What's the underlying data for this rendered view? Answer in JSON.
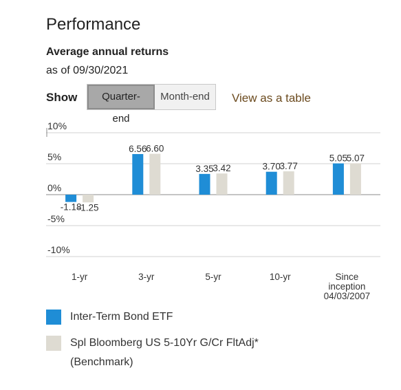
{
  "header": {
    "title": "Performance",
    "subtitle": "Average annual returns",
    "as_of": "as of 09/30/2021"
  },
  "controls": {
    "show_label": "Show",
    "options": [
      "Quarter-end",
      "Month-end"
    ],
    "selected": "Quarter-end",
    "table_link": "View as a table"
  },
  "colors": {
    "fund": "#1f8dd6",
    "benchmark": "#dedbd2",
    "link": "#6b4a1e",
    "grid": "#d0d0d0",
    "zero_line": "#8a8a8a"
  },
  "chart_data": {
    "type": "bar",
    "categories": [
      "1-yr",
      "3-yr",
      "5-yr",
      "10-yr",
      "Since inception 04/03/2007"
    ],
    "series": [
      {
        "name": "Inter-Term Bond ETF",
        "values": [
          -1.18,
          6.56,
          3.35,
          3.7,
          5.05
        ],
        "labels": [
          "-1.18",
          "6.56",
          "3.35",
          "3.70",
          "5.05"
        ]
      },
      {
        "name": "Spl Bloomberg US 5-10Yr G/Cr FltAdj* (Benchmark)",
        "values": [
          -1.25,
          6.6,
          3.42,
          3.77,
          5.07
        ],
        "labels": [
          "-1.25",
          "6.60",
          "3.42",
          "3.77",
          "5.07"
        ]
      }
    ],
    "yticks": [
      "10%",
      "5%",
      "0%",
      "-5%",
      "-10%"
    ],
    "ytick_values": [
      10,
      5,
      0,
      -5,
      -10
    ],
    "ylim": [
      -10,
      10
    ],
    "grid": true,
    "legend_position": "bottom"
  },
  "legend": [
    {
      "label": "Inter-Term Bond ETF"
    },
    {
      "label": "Spl Bloomberg US 5-10Yr G/Cr FltAdj* (Benchmark)"
    }
  ]
}
